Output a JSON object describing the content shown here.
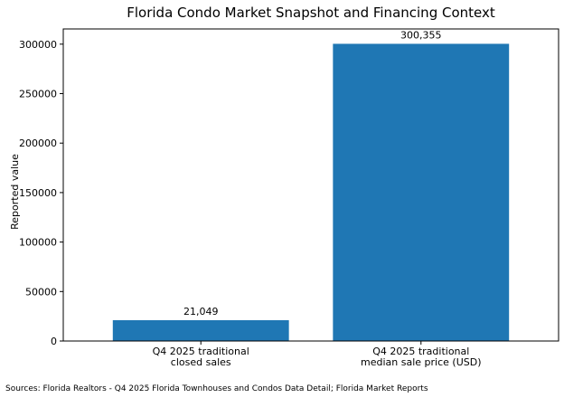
{
  "chart_data": {
    "type": "bar",
    "title": "Florida Condo Market Snapshot and Financing Context",
    "ylabel": "Reported value",
    "xlabel": "",
    "categories": [
      [
        "Q4 2025 traditional",
        "closed sales"
      ],
      [
        "Q4 2025 traditional",
        "median sale price (USD)"
      ]
    ],
    "values": [
      21049,
      300355
    ],
    "value_labels": [
      "21,049",
      "300,355"
    ],
    "ylim": [
      0,
      315373
    ],
    "yticks": [
      0,
      50000,
      100000,
      150000,
      200000,
      250000,
      300000
    ],
    "ytick_labels": [
      "0",
      "50000",
      "100000",
      "150000",
      "200000",
      "250000",
      "300000"
    ],
    "bar_color": "#1f77b4",
    "grid": false,
    "legend": "none"
  },
  "source_note": "Sources: Florida Realtors - Q4 2025 Florida Townhouses and Condos Data Detail; Florida Market Reports"
}
